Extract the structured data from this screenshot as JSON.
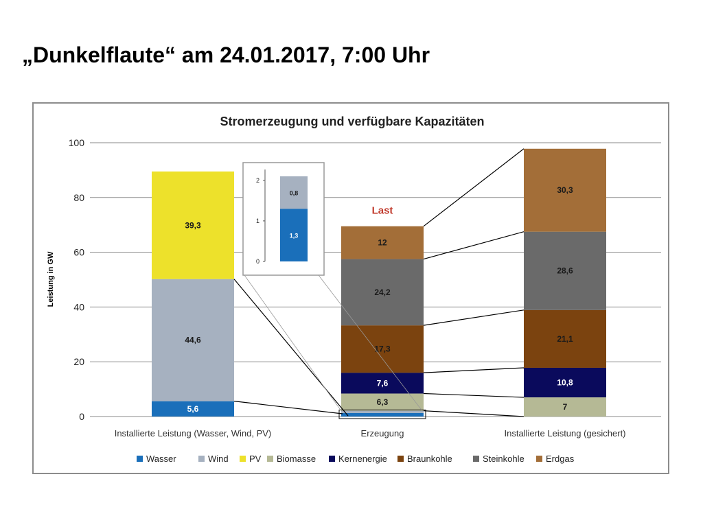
{
  "slide": {
    "title": "„Dunkelflaute“ am 24.01.2017, 7:00 Uhr"
  },
  "chart_data": {
    "type": "bar",
    "stacked": true,
    "title": "Stromerzeugung und verfügbare Kapazitäten",
    "xlabel": "",
    "ylabel": "Leistung in GW",
    "ylim": [
      0,
      100
    ],
    "yticks": [
      0,
      20,
      40,
      60,
      80,
      100
    ],
    "grid": true,
    "legend_position": "bottom",
    "categories": [
      "Installierte Leistung (Wasser, Wind, PV)",
      "Erzeugung",
      "Installierte Leistung (gesichert)"
    ],
    "series": [
      {
        "name": "Wasser",
        "color": "#1a6fba",
        "values": [
          5.6,
          1.3,
          null
        ],
        "labels": [
          "5,6",
          "",
          ""
        ]
      },
      {
        "name": "Wind",
        "color": "#a6b1c0",
        "values": [
          44.6,
          0.8,
          null
        ],
        "labels": [
          "44,6",
          "",
          ""
        ]
      },
      {
        "name": "PV",
        "color": "#ede12b",
        "values": [
          39.3,
          null,
          null
        ],
        "labels": [
          "39,3",
          "",
          ""
        ]
      },
      {
        "name": "Biomasse",
        "color": "#b5b995",
        "values": [
          null,
          6.3,
          7
        ],
        "labels": [
          "",
          "6,3",
          "7"
        ]
      },
      {
        "name": "Kernenergie",
        "color": "#0a0a5c",
        "values": [
          null,
          7.6,
          10.8
        ],
        "labels": [
          "",
          "7,6",
          "10,8"
        ]
      },
      {
        "name": "Braunkohle",
        "color": "#7b430f",
        "values": [
          null,
          17.3,
          21.1
        ],
        "labels": [
          "",
          "17,3",
          "21,1"
        ]
      },
      {
        "name": "Steinkohle",
        "color": "#6a6a6a",
        "values": [
          null,
          24.2,
          28.6
        ],
        "labels": [
          "",
          "24,2",
          "28,6"
        ]
      },
      {
        "name": "Erdgas",
        "color": "#a36e38",
        "values": [
          null,
          12,
          30.3
        ],
        "labels": [
          "",
          "12",
          "30,3"
        ]
      }
    ],
    "annotations": [
      {
        "text": "Last",
        "color": "#c0392b",
        "category": "Erzeugung"
      }
    ],
    "inset": {
      "category": "Erzeugung",
      "ylim": [
        0,
        2.2
      ],
      "yticks": [
        0,
        1,
        2
      ],
      "segments": [
        {
          "series": "Wasser",
          "value": 1.3,
          "label": "1,3"
        },
        {
          "series": "Wind",
          "value": 0.8,
          "label": "0,8"
        }
      ]
    }
  }
}
